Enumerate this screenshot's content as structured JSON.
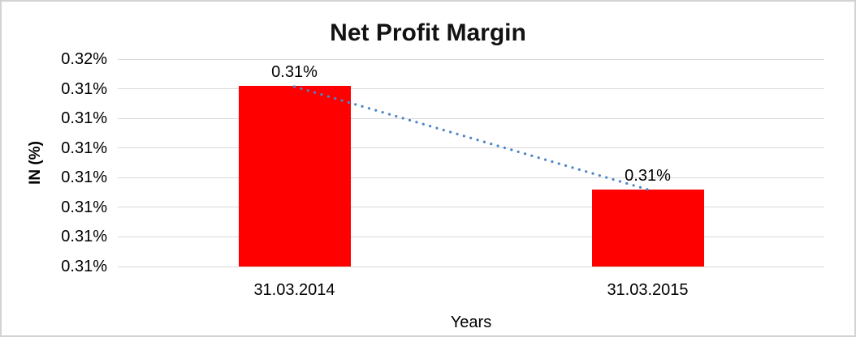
{
  "chart_data": {
    "type": "bar",
    "title": "Net Profit Margin",
    "xlabel": "Years",
    "ylabel": "IN (%)",
    "categories": [
      "31.03.2014",
      "31.03.2015"
    ],
    "values": [
      0.3141,
      0.3106
    ],
    "value_unit": "percent",
    "data_labels": [
      "0.31%",
      "0.31%"
    ],
    "y_axis": {
      "min": 0.308,
      "max": 0.315,
      "tick_labels_top_to_bottom": [
        "0.32%",
        "0.31%",
        "0.31%",
        "0.31%",
        "0.31%",
        "0.31%",
        "0.31%",
        "0.31%"
      ]
    },
    "legend": "none",
    "grid": true,
    "colors": {
      "bar": "#FF0000",
      "trendline": "#4D86C6",
      "gridline": "#D9D9D9",
      "text": "#000000",
      "frame_border": "#D3D3D3"
    },
    "trendline": {
      "style": "dotted",
      "connects": "bar tops, descending"
    }
  }
}
